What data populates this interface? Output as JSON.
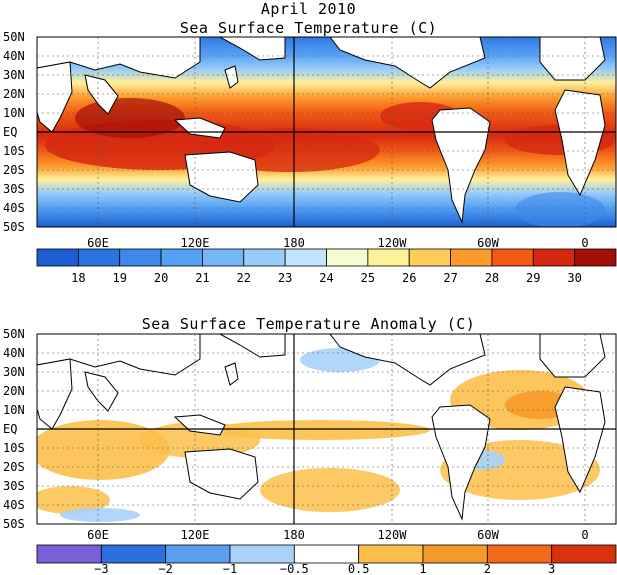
{
  "page": {
    "title_month": "April 2010"
  },
  "chart_data": [
    {
      "type": "heatmap",
      "title": "Sea Surface Temperature (C)",
      "y_ticks": [
        "50N",
        "40N",
        "30N",
        "20N",
        "10N",
        "EQ",
        "10S",
        "20S",
        "30S",
        "40S",
        "50S"
      ],
      "x_ticks": [
        "60E",
        "120E",
        "180",
        "120W",
        "60W",
        "0"
      ],
      "colorbar": {
        "labels": [
          "18",
          "19",
          "20",
          "21",
          "22",
          "23",
          "24",
          "25",
          "26",
          "27",
          "28",
          "29",
          "30"
        ],
        "colors": [
          "#1b5fd0",
          "#2b74e0",
          "#3e88ec",
          "#55a0f2",
          "#74b6f6",
          "#98cdfa",
          "#c2e4fd",
          "#f4fcd2",
          "#fff09a",
          "#ffcc5c",
          "#fd9a2c",
          "#f15a16",
          "#d62810",
          "#a50f08"
        ]
      },
      "grid": true
    },
    {
      "type": "heatmap",
      "title": "Sea Surface Temperature Anomaly (C)",
      "y_ticks": [
        "50N",
        "40N",
        "30N",
        "20N",
        "10N",
        "EQ",
        "10S",
        "20S",
        "30S",
        "40S",
        "50S"
      ],
      "x_ticks": [
        "60E",
        "120E",
        "180",
        "120W",
        "60W",
        "0"
      ],
      "colorbar": {
        "labels": [
          "−3",
          "−2",
          "−1",
          "−0.5",
          "0.5",
          "1",
          "2",
          "3"
        ],
        "colors": [
          "#7a5fd6",
          "#2e6fe0",
          "#5a9ef0",
          "#a9d2fb",
          "#ffffff",
          "#fcc04a",
          "#f79a2a",
          "#f06a18",
          "#d9300e"
        ]
      },
      "grid": true
    }
  ]
}
